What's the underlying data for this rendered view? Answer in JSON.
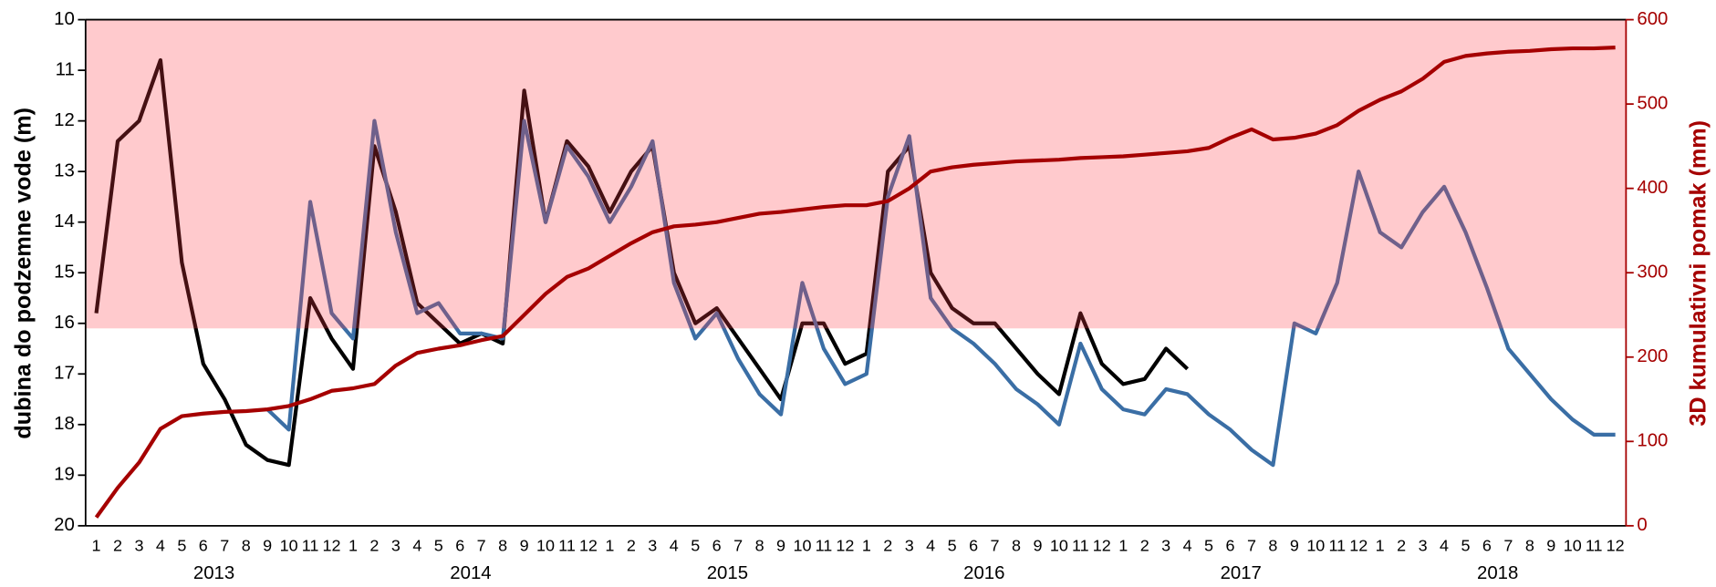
{
  "chart_data": {
    "type": "line",
    "ylabel": "dubina do podzemne vode (m)",
    "y2label": "3D kumulativni pomak (mm)",
    "categories": [
      "1",
      "2",
      "3",
      "4",
      "5",
      "6",
      "7",
      "8",
      "9",
      "10",
      "11",
      "12",
      "1",
      "2",
      "3",
      "4",
      "5",
      "6",
      "7",
      "8",
      "9",
      "10",
      "11",
      "12",
      "1",
      "2",
      "3",
      "4",
      "5",
      "6",
      "7",
      "8",
      "9",
      "10",
      "11",
      "12",
      "1",
      "2",
      "3",
      "4",
      "5",
      "6",
      "7",
      "8",
      "9",
      "10",
      "11",
      "12",
      "1",
      "2",
      "3",
      "4",
      "5",
      "6",
      "7",
      "8",
      "9",
      "10",
      "11",
      "12",
      "1",
      "2",
      "3",
      "4",
      "5",
      "6",
      "7",
      "8",
      "9",
      "10",
      "11",
      "12"
    ],
    "years": [
      "2013",
      "2014",
      "2015",
      "2016",
      "2017",
      "2018"
    ],
    "ylim": [
      10,
      20
    ],
    "y_inverted": true,
    "yticks": [
      10,
      11,
      12,
      13,
      14,
      15,
      16,
      17,
      18,
      19,
      20
    ],
    "y2lim": [
      0,
      600
    ],
    "y2ticks": [
      0,
      100,
      200,
      300,
      400,
      500,
      600
    ],
    "y2color": "#a50000",
    "band": {
      "from": 10,
      "to": 16.1,
      "color": "#ff3c46",
      "opacity": 0.27
    },
    "series": [
      {
        "color": "#000000",
        "values": [
          15.8,
          12.4,
          12.0,
          10.8,
          14.8,
          16.8,
          17.5,
          18.4,
          18.7,
          18.8,
          15.5,
          16.3,
          16.9,
          12.5,
          13.8,
          15.6,
          16.0,
          16.4,
          16.2,
          16.4,
          11.4,
          14.0,
          12.4,
          12.9,
          13.8,
          13.0,
          12.5,
          15.0,
          16.0,
          15.7,
          16.3,
          16.9,
          17.5,
          16.0,
          16.0,
          16.8,
          16.6,
          13.0,
          12.5,
          15.0,
          15.7,
          16.0,
          16.0,
          16.5,
          17.0,
          17.4,
          15.8,
          16.8,
          17.2,
          17.1,
          16.5,
          16.9,
          null,
          null,
          null,
          null,
          null,
          null,
          null,
          null,
          null,
          null,
          null,
          null,
          null,
          null,
          null,
          null,
          null,
          null,
          null,
          null
        ]
      },
      {
        "color": "#3a6ea5",
        "values": [
          null,
          null,
          null,
          null,
          null,
          null,
          null,
          null,
          17.7,
          18.1,
          13.6,
          15.8,
          16.3,
          12.0,
          14.2,
          15.8,
          15.6,
          16.2,
          16.2,
          16.3,
          12.0,
          14.0,
          12.5,
          13.1,
          14.0,
          13.3,
          12.4,
          15.2,
          16.3,
          15.8,
          16.7,
          17.4,
          17.8,
          15.2,
          16.5,
          17.2,
          17.0,
          13.5,
          12.3,
          15.5,
          16.1,
          16.4,
          16.8,
          17.3,
          17.6,
          18.0,
          16.4,
          17.3,
          17.7,
          17.8,
          17.3,
          17.4,
          17.8,
          18.1,
          18.5,
          18.8,
          16.0,
          16.2,
          15.2,
          13.0,
          14.2,
          14.5,
          13.8,
          13.3,
          14.2,
          15.3,
          16.5,
          17.0,
          17.5,
          17.9,
          18.2,
          18.2
        ]
      },
      {
        "color": "#a50000",
        "axis": "y2",
        "values": [
          10,
          45,
          75,
          115,
          130,
          133,
          135,
          136,
          138,
          142,
          150,
          160,
          163,
          168,
          190,
          205,
          210,
          214,
          220,
          225,
          250,
          275,
          295,
          305,
          320,
          335,
          348,
          355,
          357,
          360,
          365,
          370,
          372,
          375,
          378,
          380,
          380,
          385,
          400,
          420,
          425,
          428,
          430,
          432,
          433,
          434,
          436,
          437,
          438,
          440,
          442,
          444,
          448,
          460,
          470,
          458,
          460,
          465,
          475,
          492,
          505,
          515,
          530,
          550,
          557,
          560,
          562,
          563,
          565,
          566,
          566,
          567
        ]
      }
    ]
  }
}
